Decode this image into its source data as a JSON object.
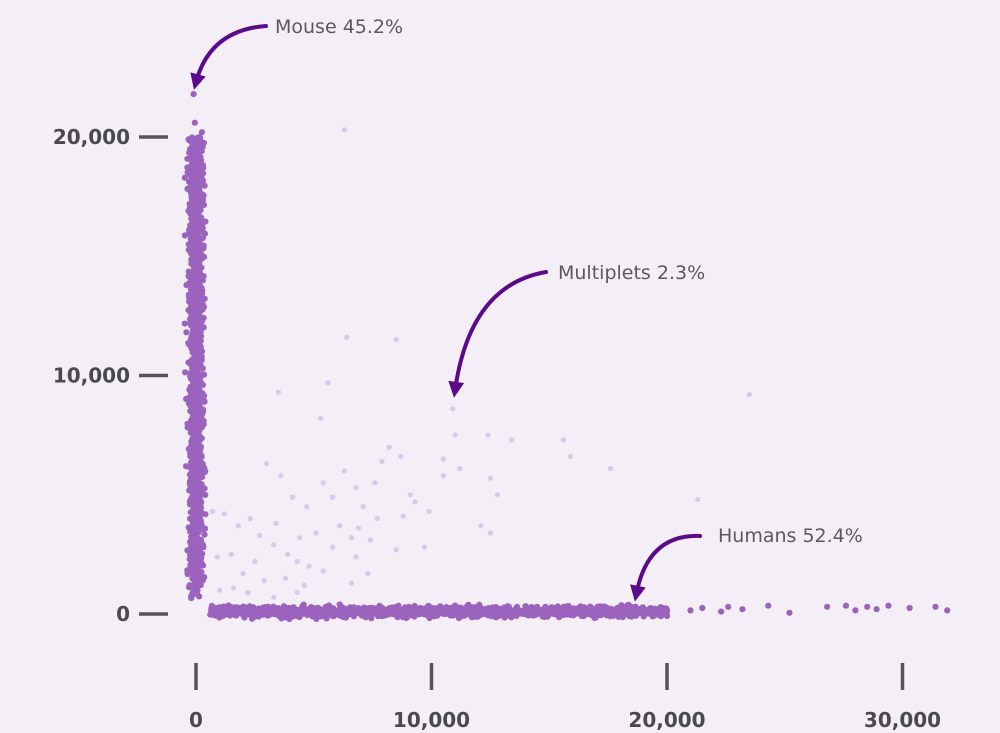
{
  "chart_data": {
    "type": "scatter",
    "title": "",
    "xlabel": "",
    "ylabel": "",
    "xlim": [
      0,
      32000
    ],
    "ylim": [
      0,
      22000
    ],
    "x_ticks": [
      0,
      10000,
      20000,
      30000
    ],
    "x_tick_labels": [
      "0",
      "10,000",
      "20,000",
      "30,000"
    ],
    "y_ticks": [
      0,
      10000,
      20000
    ],
    "y_tick_labels": [
      "0",
      "10,000",
      "20,000"
    ],
    "grid": false,
    "legend": "none",
    "colors": {
      "background": "#f4eef7",
      "cluster_points": "#9b63bd",
      "multiplet_points": "#d9c8e6",
      "annotation_arrow": "#5a0a8a",
      "axis": "#555555"
    },
    "annotations": [
      {
        "text": "Mouse 45.2%",
        "arrow_to": [
          0,
          22300
        ]
      },
      {
        "text": "Multiplets 2.3%",
        "arrow_to": [
          11000,
          9400
        ]
      },
      {
        "text": "Humans 52.4%",
        "arrow_to": [
          18700,
          850
        ]
      }
    ],
    "series": [
      {
        "name": "Mouse",
        "color": "#9b63bd",
        "description_points": "dense band along x≈0 from y≈600 to y≈20000",
        "x_range": [
          -600,
          600
        ],
        "y_range": [
          600,
          20000
        ],
        "count": 1400,
        "outliers": [
          [
            -100,
            21800
          ],
          [
            -50,
            20600
          ],
          [
            250,
            20200
          ],
          [
            -150,
            19600
          ]
        ]
      },
      {
        "name": "Humans",
        "color": "#9b63bd",
        "description_points": "dense band along y≈0 from x≈600 to x≈20000",
        "x_range": [
          600,
          20000
        ],
        "y_range": [
          -300,
          500
        ],
        "count": 1400,
        "outliers": [
          [
            21000,
            150
          ],
          [
            21500,
            250
          ],
          [
            22300,
            100
          ],
          [
            22600,
            300
          ],
          [
            23200,
            200
          ],
          [
            24300,
            350
          ],
          [
            25200,
            50
          ],
          [
            26800,
            300
          ],
          [
            27600,
            350
          ],
          [
            28000,
            150
          ],
          [
            28500,
            300
          ],
          [
            28900,
            200
          ],
          [
            29400,
            350
          ],
          [
            30300,
            250
          ],
          [
            31400,
            300
          ],
          [
            31900,
            150
          ]
        ]
      },
      {
        "name": "Multiplets",
        "color": "#d9c8e6",
        "points": [
          [
            6300,
            20300
          ],
          [
            6400,
            11600
          ],
          [
            8500,
            11500
          ],
          [
            3500,
            9300
          ],
          [
            10900,
            8600
          ],
          [
            5300,
            8200
          ],
          [
            5600,
            9700
          ],
          [
            11000,
            7500
          ],
          [
            12400,
            7500
          ],
          [
            13400,
            7300
          ],
          [
            15600,
            7300
          ],
          [
            15900,
            6600
          ],
          [
            17600,
            6100
          ],
          [
            3000,
            6300
          ],
          [
            3600,
            5800
          ],
          [
            7900,
            6400
          ],
          [
            8700,
            6600
          ],
          [
            9300,
            4700
          ],
          [
            10500,
            5800
          ],
          [
            11200,
            6100
          ],
          [
            12500,
            5700
          ],
          [
            12800,
            5000
          ],
          [
            12100,
            3700
          ],
          [
            12500,
            3400
          ],
          [
            21300,
            4800
          ],
          [
            23500,
            9200
          ],
          [
            8200,
            7000
          ],
          [
            6300,
            6000
          ],
          [
            5400,
            5500
          ],
          [
            4700,
            4500
          ],
          [
            4100,
            4900
          ],
          [
            7100,
            4500
          ],
          [
            7700,
            4000
          ],
          [
            9100,
            5000
          ],
          [
            9900,
            4300
          ],
          [
            9700,
            2800
          ],
          [
            6100,
            3700
          ],
          [
            6600,
            3200
          ],
          [
            6900,
            3600
          ],
          [
            7400,
            3100
          ],
          [
            2300,
            4000
          ],
          [
            1800,
            3700
          ],
          [
            4400,
            3200
          ],
          [
            5100,
            3400
          ],
          [
            5800,
            2800
          ],
          [
            3300,
            2900
          ],
          [
            2700,
            3300
          ],
          [
            3900,
            2500
          ],
          [
            2500,
            2200
          ],
          [
            1500,
            2500
          ],
          [
            900,
            2400
          ],
          [
            1200,
            4200
          ],
          [
            700,
            4300
          ],
          [
            2000,
            1700
          ],
          [
            3800,
            1500
          ],
          [
            4800,
            2000
          ],
          [
            5400,
            1800
          ],
          [
            6800,
            2400
          ],
          [
            7300,
            1700
          ],
          [
            8500,
            2700
          ],
          [
            1600,
            1100
          ],
          [
            2900,
            1400
          ],
          [
            4600,
            1200
          ],
          [
            1000,
            1000
          ],
          [
            2200,
            900
          ],
          [
            3300,
            700
          ],
          [
            4300,
            900
          ],
          [
            6600,
            1300
          ],
          [
            5800,
            4900
          ],
          [
            7600,
            5500
          ],
          [
            8800,
            4100
          ],
          [
            3400,
            3800
          ],
          [
            6800,
            5300
          ],
          [
            10500,
            6500
          ],
          [
            4300,
            2200
          ]
        ]
      }
    ]
  }
}
